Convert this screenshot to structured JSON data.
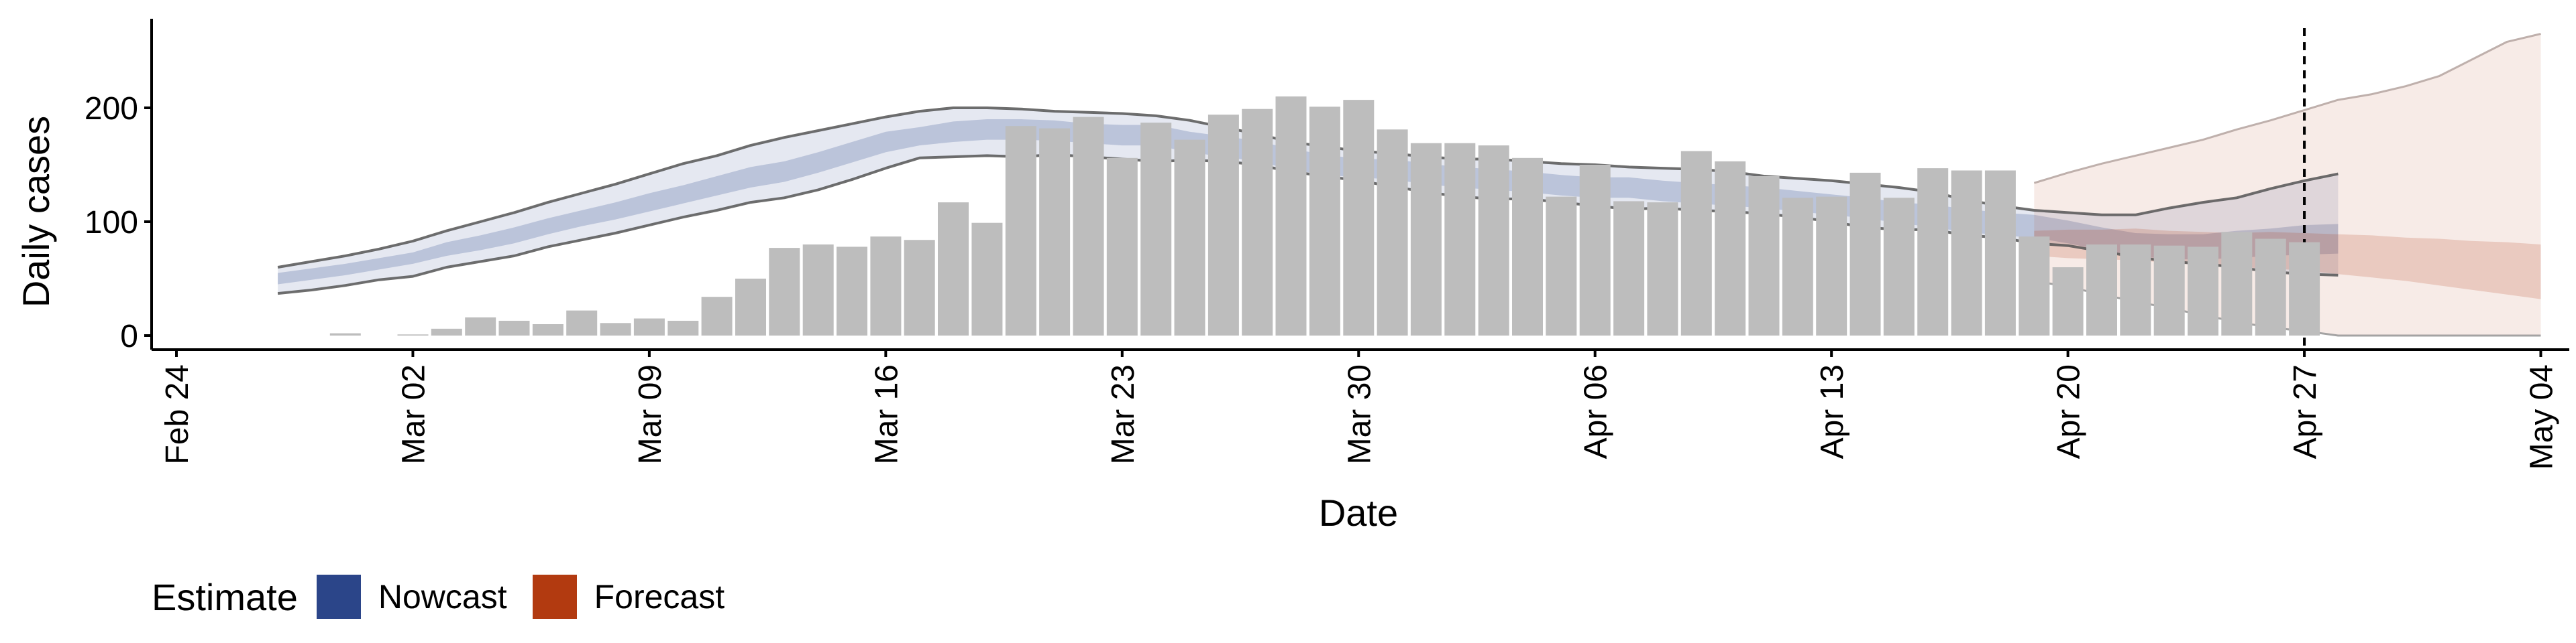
{
  "chart_data": {
    "type": "bar",
    "title": "",
    "xlabel": "Date",
    "ylabel": "Daily cases",
    "x_ticks": [
      "Feb 24",
      "Mar 02",
      "Mar 09",
      "Mar 16",
      "Mar 23",
      "Mar 30",
      "Apr 06",
      "Apr 13",
      "Apr 20",
      "Apr 27",
      "May 04"
    ],
    "y_ticks": [
      0,
      100,
      200
    ],
    "ylim": [
      -12,
      278
    ],
    "x_range": [
      "2020-02-24",
      "2020-05-04"
    ],
    "grid": false,
    "reference_line": {
      "date": "2020-04-27",
      "style": "dashed"
    },
    "bars": {
      "start_date": "2020-02-29",
      "values": [
        2,
        0,
        1,
        6,
        16,
        13,
        10,
        22,
        11,
        15,
        13,
        34,
        50,
        77,
        80,
        78,
        87,
        84,
        117,
        99,
        184,
        182,
        192,
        156,
        187,
        172,
        194,
        199,
        210,
        201,
        207,
        181,
        169,
        169,
        167,
        156,
        122,
        150,
        118,
        117,
        162,
        153,
        140,
        121,
        122,
        143,
        121,
        147,
        145,
        145,
        87,
        60,
        80,
        80,
        79,
        78,
        91,
        85,
        82
      ]
    },
    "nowcast": {
      "start_date": "2020-02-27",
      "median": [
        50,
        54,
        58,
        63,
        68,
        76,
        82,
        88,
        96,
        103,
        110,
        117,
        124,
        131,
        139,
        144,
        152,
        161,
        170,
        175,
        179,
        181,
        181,
        180,
        177,
        176,
        176,
        170,
        166,
        162,
        155,
        150,
        147,
        146,
        142,
        139,
        137,
        135,
        132,
        130,
        130,
        127,
        125,
        123,
        121,
        118,
        115,
        112,
        108,
        105,
        101,
        98,
        96,
        91,
        85,
        80,
        78,
        78,
        80,
        82,
        84,
        85
      ],
      "inner_low": [
        45,
        49,
        53,
        58,
        63,
        70,
        75,
        81,
        89,
        96,
        102,
        109,
        116,
        123,
        130,
        135,
        143,
        152,
        161,
        167,
        170,
        172,
        172,
        171,
        169,
        167,
        167,
        161,
        157,
        153,
        146,
        141,
        139,
        137,
        133,
        130,
        128,
        126,
        123,
        121,
        121,
        118,
        116,
        114,
        112,
        109,
        106,
        103,
        99,
        95,
        91,
        88,
        86,
        81,
        75,
        70,
        67,
        67,
        68,
        70,
        71,
        72
      ],
      "inner_high": [
        55,
        59,
        63,
        68,
        73,
        82,
        88,
        95,
        103,
        110,
        117,
        125,
        132,
        140,
        148,
        153,
        161,
        170,
        179,
        183,
        188,
        190,
        190,
        189,
        186,
        185,
        185,
        179,
        175,
        171,
        164,
        159,
        155,
        155,
        151,
        148,
        146,
        144,
        141,
        139,
        139,
        136,
        134,
        132,
        130,
        127,
        124,
        121,
        117,
        115,
        111,
        108,
        106,
        101,
        95,
        90,
        89,
        89,
        92,
        94,
        97,
        98
      ],
      "outer_low": [
        37,
        40,
        44,
        49,
        52,
        60,
        65,
        70,
        78,
        84,
        90,
        97,
        104,
        110,
        117,
        121,
        128,
        137,
        147,
        156,
        157,
        158,
        157,
        159,
        157,
        155,
        153,
        154,
        153,
        150,
        144,
        140,
        136,
        131,
        126,
        122,
        120,
        120,
        117,
        114,
        111,
        112,
        110,
        109,
        107,
        104,
        100,
        95,
        93,
        93,
        88,
        86,
        81,
        79,
        74,
        69,
        65,
        63,
        60,
        56,
        54,
        53
      ],
      "outer_high": [
        60,
        65,
        70,
        76,
        83,
        92,
        100,
        108,
        117,
        125,
        133,
        142,
        151,
        158,
        167,
        174,
        180,
        186,
        192,
        197,
        200,
        200,
        199,
        197,
        196,
        195,
        193,
        189,
        183,
        177,
        170,
        166,
        162,
        160,
        157,
        155,
        155,
        153,
        151,
        150,
        148,
        147,
        146,
        144,
        140,
        138,
        136,
        133,
        130,
        126,
        119,
        114,
        110,
        108,
        106,
        106,
        112,
        117,
        121,
        129,
        136,
        142
      ]
    },
    "forecast": {
      "start_date": "2020-04-19",
      "median": [
        80,
        79,
        78,
        78,
        76,
        75,
        74,
        74,
        73,
        71,
        70,
        67,
        65,
        62,
        59,
        56
      ],
      "inner_low": [
        70,
        68,
        67,
        66,
        64,
        62,
        60,
        59,
        57,
        54,
        51,
        48,
        44,
        40,
        36,
        32
      ],
      "inner_high": [
        92,
        93,
        93,
        94,
        92,
        91,
        90,
        91,
        90,
        89,
        88,
        86,
        85,
        83,
        82,
        80
      ],
      "outer_low": [
        48,
        43,
        36,
        30,
        24,
        18,
        12,
        7,
        4,
        0,
        0,
        0,
        0,
        0,
        0,
        0
      ],
      "outer_high": [
        134,
        143,
        151,
        158,
        165,
        172,
        181,
        189,
        198,
        207,
        212,
        219,
        228,
        243,
        258,
        265
      ]
    },
    "series": [
      {
        "name": "Nowcast",
        "color": "#2b4589"
      },
      {
        "name": "Forecast",
        "color": "#b23a10"
      }
    ],
    "legend": {
      "title": "Estimate",
      "position": "bottom-left"
    }
  }
}
